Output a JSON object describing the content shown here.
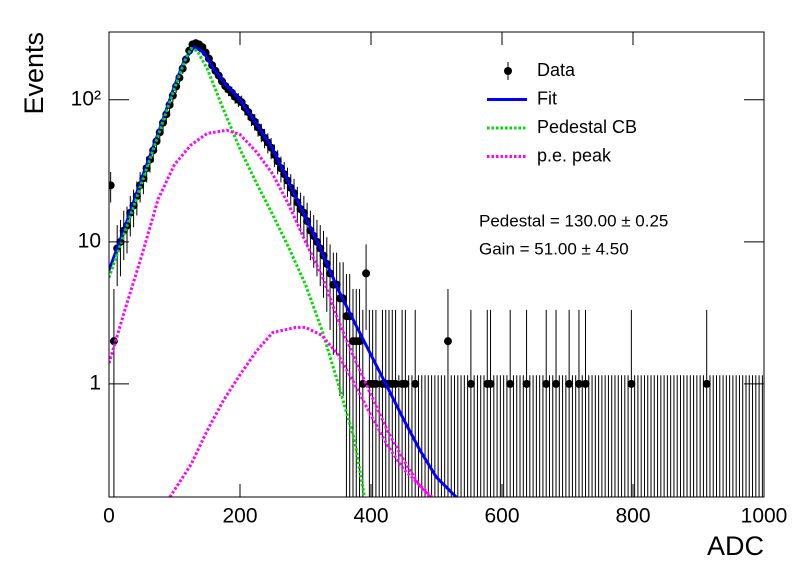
{
  "chart_data": {
    "type": "scatter",
    "xlabel": "ADC",
    "ylabel": "Events",
    "xlim": [
      0,
      1000
    ],
    "ylim": [
      0.16,
      300
    ],
    "log_y": true,
    "xticks": [
      0,
      200,
      400,
      600,
      800,
      1000
    ],
    "yticks": [
      1,
      10,
      {
        "value": 100,
        "label": "10²"
      }
    ],
    "legend": "upper right",
    "annotations": [
      "Pedestal = 130.00 ± 0.25",
      "Gain = 51.00 ± 4.50"
    ],
    "series": [
      {
        "name": "Data",
        "color": "#000000",
        "line": "markers",
        "x": [
          2.5,
          7.5,
          12.5,
          17.5,
          22.5,
          27.5,
          32.5,
          37.5,
          42.5,
          47.5,
          52.5,
          57.5,
          62.5,
          67.5,
          72.5,
          77.5,
          82.5,
          87.5,
          92.5,
          97.5,
          102.5,
          107.5,
          112.5,
          117.5,
          122.5,
          127.5,
          132.5,
          137.5,
          142.5,
          147.5,
          152.5,
          157.5,
          162.5,
          167.5,
          172.5,
          177.5,
          182.5,
          187.5,
          192.5,
          197.5,
          202.5,
          207.5,
          212.5,
          217.5,
          222.5,
          227.5,
          232.5,
          237.5,
          242.5,
          247.5,
          252.5,
          257.5,
          262.5,
          267.5,
          272.5,
          277.5,
          282.5,
          287.5,
          292.5,
          297.5,
          302.5,
          307.5,
          312.5,
          317.5,
          322.5,
          327.5,
          332.5,
          337.5,
          342.5,
          347.5,
          352.5,
          357.5,
          362.5,
          367.5,
          372.5,
          377.5,
          382.5,
          387.5,
          392.5,
          397.5,
          402.5,
          407.5,
          412.5,
          417.5,
          422.5,
          427.5,
          432.5,
          437.5,
          442.5,
          447.5,
          452.5,
          457.5,
          462.5,
          467.5,
          472.5,
          477.5,
          482.5,
          487.5,
          492.5,
          497.5,
          502.5,
          507.5,
          512.5,
          517.5,
          522.5,
          527.5,
          532.5,
          537.5,
          542.5,
          547.5,
          552.5,
          557.5,
          562.5,
          567.5,
          572.5,
          577.5,
          582.5,
          587.5,
          592.5,
          597.5,
          602.5,
          607.5,
          612.5,
          617.5,
          622.5,
          627.5,
          632.5,
          637.5,
          642.5,
          647.5,
          652.5,
          657.5,
          662.5,
          667.5,
          672.5,
          677.5,
          682.5,
          687.5,
          692.5,
          697.5,
          702.5,
          707.5,
          712.5,
          717.5,
          722.5,
          727.5,
          732.5,
          737.5,
          742.5,
          747.5,
          752.5,
          757.5,
          762.5,
          767.5,
          772.5,
          777.5,
          782.5,
          787.5,
          792.5,
          797.5,
          802.5,
          807.5,
          812.5,
          817.5,
          822.5,
          827.5,
          832.5,
          837.5,
          842.5,
          847.5,
          852.5,
          857.5,
          862.5,
          867.5,
          872.5,
          877.5,
          882.5,
          887.5,
          892.5,
          897.5,
          902.5,
          907.5,
          912.5,
          917.5,
          922.5,
          927.5,
          932.5,
          937.5,
          942.5,
          947.5,
          952.5,
          957.5,
          962.5,
          967.5,
          972.5,
          977.5,
          982.5,
          987.5,
          992.5,
          997.5
        ],
        "values": [
          25,
          2,
          9,
          10,
          12,
          13,
          16,
          18,
          21,
          25,
          28,
          33,
          38,
          44,
          51,
          59,
          69,
          79,
          92,
          107,
          124,
          143,
          166,
          192,
          222,
          245,
          250,
          245,
          235,
          215,
          195,
          175,
          160,
          148,
          135,
          125,
          118,
          112,
          105,
          100,
          96,
          88,
          82,
          75,
          70,
          64,
          59,
          54,
          50,
          46,
          41,
          37,
          33,
          30,
          27,
          24,
          22,
          19,
          17,
          16,
          14,
          12,
          11,
          10,
          9,
          8,
          7,
          6,
          5,
          5,
          4,
          4,
          3,
          3,
          2,
          2,
          2,
          1,
          6,
          1,
          1,
          1,
          0,
          1,
          1,
          1,
          1,
          1,
          0,
          1,
          1,
          0,
          0,
          1,
          0,
          0,
          0,
          0,
          0,
          0,
          0,
          0,
          0,
          2,
          0,
          0,
          0,
          0,
          0,
          0,
          1,
          0,
          0,
          0,
          0,
          1,
          1,
          0,
          0,
          0,
          0,
          0,
          1,
          0,
          0,
          0,
          0,
          1,
          0,
          0,
          0,
          0,
          0,
          1,
          0,
          0,
          1,
          0,
          0,
          0,
          1,
          0,
          0,
          1,
          0,
          1,
          0,
          0,
          0,
          0,
          0,
          0,
          0,
          0,
          0,
          0,
          0,
          0,
          0,
          1,
          0,
          0,
          0,
          0,
          0,
          0,
          0,
          0,
          0,
          0,
          0,
          0,
          0,
          0,
          0,
          0,
          0,
          0,
          0,
          0,
          0,
          0,
          1,
          0,
          0,
          0,
          0,
          0,
          0,
          0,
          0,
          0,
          0,
          0,
          0,
          0,
          0,
          0,
          0,
          0
        ],
        "errors": [
          6.07,
          2.66,
          4.12,
          4.28,
          4.57,
          4.71,
          5.09,
          5.33,
          5.66,
          6.07,
          6.36,
          6.81,
          7.23,
          7.69,
          8.19,
          8.73,
          9.35,
          9.93,
          10.64,
          11.38,
          12.17,
          12.99,
          13.91,
          14.88,
          15.92,
          16.68,
          16.84,
          16.68,
          16.35,
          15.69,
          14.99,
          14.26,
          13.68,
          13.19,
          12.65,
          12.21,
          11.9,
          11.62,
          11.28,
          11.04,
          10.84,
          10.42,
          10.1,
          9.7,
          9.41,
          9.05,
          8.73,
          8.4,
          8.12,
          7.84,
          7.46,
          7.14,
          6.81,
          6.55,
          6.27,
          5.97,
          5.77,
          5.44,
          5.21,
          5.09,
          4.84,
          4.57,
          4.43,
          4.28,
          4.12,
          3.96,
          3.78,
          3.6,
          3.4,
          3.4,
          3.18,
          3.18,
          2.94,
          2.94,
          2.66,
          2.66,
          2.66,
          2.32,
          3.6,
          2.32,
          2.32,
          2.32,
          1.15,
          2.32,
          2.32,
          2.32,
          2.32,
          2.32,
          1.15,
          2.32,
          2.32,
          1.15,
          1.15,
          2.32,
          1.15,
          1.15,
          1.15,
          1.15,
          1.15,
          1.15,
          1.15,
          1.15,
          1.15,
          2.66,
          1.15,
          1.15,
          1.15,
          1.15,
          1.15,
          1.15,
          2.32,
          1.15,
          1.15,
          1.15,
          1.15,
          2.32,
          2.32,
          1.15,
          1.15,
          1.15,
          1.15,
          1.15,
          2.32,
          1.15,
          1.15,
          1.15,
          1.15,
          2.32,
          1.15,
          1.15,
          1.15,
          1.15,
          1.15,
          2.32,
          1.15,
          1.15,
          2.32,
          1.15,
          1.15,
          1.15,
          2.32,
          1.15,
          1.15,
          2.32,
          1.15,
          2.32,
          1.15,
          1.15,
          1.15,
          1.15,
          1.15,
          1.15,
          1.15,
          1.15,
          1.15,
          1.15,
          1.15,
          1.15,
          1.15,
          2.32,
          1.15,
          1.15,
          1.15,
          1.15,
          1.15,
          1.15,
          1.15,
          1.15,
          1.15,
          1.15,
          1.15,
          1.15,
          1.15,
          1.15,
          1.15,
          1.15,
          1.15,
          1.15,
          1.15,
          1.15,
          1.15,
          1.15,
          2.32,
          1.15,
          1.15,
          1.15,
          1.15,
          1.15,
          1.15,
          1.15,
          1.15,
          1.15,
          1.15,
          1.15,
          1.15,
          1.15,
          1.15,
          1.15,
          1.15,
          1.15
        ]
      },
      {
        "name": "Fit",
        "color": "#0000ff",
        "line": "solid",
        "x": [
          0,
          25,
          50,
          75,
          100,
          115,
          130,
          145,
          160,
          180,
          200,
          225,
          250,
          275,
          300,
          325,
          350,
          375,
          400,
          425,
          450,
          475,
          500,
          530
        ],
        "values": [
          6.3,
          13,
          28,
          58,
          125,
          190,
          235,
          215,
          165,
          125,
          100,
          68,
          45,
          26,
          15,
          8.5,
          4.6,
          2.7,
          1.6,
          0.95,
          0.56,
          0.34,
          0.22,
          0.16
        ]
      },
      {
        "name": "Pedestal CB",
        "color": "#00dd00",
        "line": "dotted",
        "x": [
          0,
          25,
          50,
          75,
          100,
          115,
          125,
          135,
          150,
          175,
          200,
          225,
          250,
          275,
          300,
          325,
          350,
          375,
          390
        ],
        "values": [
          5.6,
          12,
          26,
          56,
          120,
          185,
          230,
          220,
          165,
          85,
          45,
          26,
          15.5,
          9,
          5,
          2.4,
          1,
          0.4,
          0.16
        ]
      },
      {
        "name": "p.e. peak",
        "color": "#ff00ff",
        "line": "dotted",
        "x": [
          0,
          25,
          50,
          75,
          100,
          125,
          150,
          180,
          200,
          225,
          250,
          275,
          300,
          325,
          350,
          375,
          400,
          425,
          450,
          475,
          490,
          null,
          93,
          125,
          150,
          175,
          200,
          225,
          250,
          285,
          300,
          325,
          350,
          375,
          400,
          425,
          450,
          493
        ],
        "values": [
          1.4,
          3.4,
          8,
          20,
          35,
          48,
          58,
          61,
          57,
          43,
          30,
          18,
          10,
          5.8,
          2.8,
          1.5,
          0.84,
          0.47,
          0.29,
          0.19,
          0.16,
          null,
          0.16,
          0.27,
          0.47,
          0.77,
          1.16,
          1.7,
          2.3,
          2.5,
          2.5,
          2.2,
          1.6,
          1,
          0.6,
          0.37,
          0.25,
          0.16
        ]
      }
    ]
  }
}
